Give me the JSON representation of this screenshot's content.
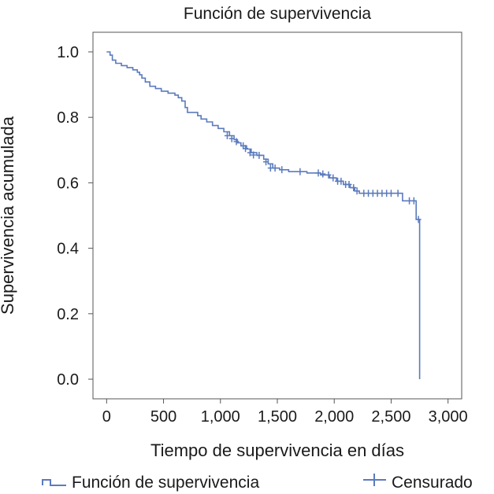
{
  "chart_data": {
    "type": "line",
    "title": "Función de supervivencia",
    "xlabel": "Tiempo de supervivencia en días",
    "ylabel": "Supervivencia acumulada",
    "xlim": [
      -120,
      3120
    ],
    "ylim": [
      -0.06,
      1.06
    ],
    "x_ticks": [
      0,
      500,
      1000,
      1500,
      2000,
      2500,
      3000
    ],
    "x_tick_labels": [
      "0",
      "500",
      "1,000",
      "1,500",
      "2,000",
      "2,500",
      "3,000"
    ],
    "y_ticks": [
      0.0,
      0.2,
      0.4,
      0.6,
      0.8,
      1.0
    ],
    "y_tick_labels": [
      "0.0",
      "0.2",
      "0.4",
      "0.6",
      "0.8",
      "1.0"
    ],
    "grid": false,
    "legend_position": "bottom",
    "line_color": "#5b7bbd",
    "series": [
      {
        "name": "Función de supervivencia",
        "step": true,
        "points": [
          [
            0,
            1.0
          ],
          [
            30,
            0.99
          ],
          [
            50,
            0.975
          ],
          [
            80,
            0.965
          ],
          [
            130,
            0.958
          ],
          [
            180,
            0.952
          ],
          [
            230,
            0.945
          ],
          [
            270,
            0.938
          ],
          [
            290,
            0.93
          ],
          [
            310,
            0.92
          ],
          [
            340,
            0.908
          ],
          [
            380,
            0.895
          ],
          [
            430,
            0.888
          ],
          [
            480,
            0.88
          ],
          [
            540,
            0.874
          ],
          [
            600,
            0.868
          ],
          [
            630,
            0.86
          ],
          [
            660,
            0.85
          ],
          [
            690,
            0.83
          ],
          [
            710,
            0.815
          ],
          [
            800,
            0.805
          ],
          [
            830,
            0.795
          ],
          [
            880,
            0.786
          ],
          [
            930,
            0.775
          ],
          [
            980,
            0.766
          ],
          [
            1030,
            0.756
          ],
          [
            1080,
            0.744
          ],
          [
            1120,
            0.732
          ],
          [
            1150,
            0.722
          ],
          [
            1180,
            0.713
          ],
          [
            1230,
            0.703
          ],
          [
            1270,
            0.692
          ],
          [
            1320,
            0.684
          ],
          [
            1380,
            0.672
          ],
          [
            1420,
            0.658
          ],
          [
            1460,
            0.645
          ],
          [
            1520,
            0.64
          ],
          [
            1600,
            0.634
          ],
          [
            1760,
            0.63
          ],
          [
            1880,
            0.624
          ],
          [
            1960,
            0.615
          ],
          [
            2020,
            0.605
          ],
          [
            2080,
            0.595
          ],
          [
            2140,
            0.585
          ],
          [
            2180,
            0.575
          ],
          [
            2220,
            0.568
          ],
          [
            2600,
            0.545
          ],
          [
            2720,
            0.488
          ],
          [
            2750,
            0.0
          ]
        ]
      },
      {
        "name": "Censurado",
        "marker": "+",
        "points": [
          [
            1060,
            0.744
          ],
          [
            1100,
            0.735
          ],
          [
            1140,
            0.726
          ],
          [
            1200,
            0.713
          ],
          [
            1220,
            0.705
          ],
          [
            1260,
            0.692
          ],
          [
            1290,
            0.685
          ],
          [
            1340,
            0.684
          ],
          [
            1400,
            0.664
          ],
          [
            1440,
            0.645
          ],
          [
            1480,
            0.645
          ],
          [
            1540,
            0.64
          ],
          [
            1700,
            0.634
          ],
          [
            1860,
            0.63
          ],
          [
            1900,
            0.627
          ],
          [
            1950,
            0.624
          ],
          [
            1990,
            0.615
          ],
          [
            2030,
            0.605
          ],
          [
            2060,
            0.605
          ],
          [
            2100,
            0.595
          ],
          [
            2130,
            0.595
          ],
          [
            2170,
            0.585
          ],
          [
            2200,
            0.575
          ],
          [
            2260,
            0.568
          ],
          [
            2300,
            0.568
          ],
          [
            2340,
            0.568
          ],
          [
            2380,
            0.568
          ],
          [
            2420,
            0.568
          ],
          [
            2460,
            0.568
          ],
          [
            2500,
            0.568
          ],
          [
            2560,
            0.568
          ],
          [
            2660,
            0.545
          ],
          [
            2700,
            0.545
          ],
          [
            2740,
            0.488
          ]
        ]
      }
    ]
  }
}
